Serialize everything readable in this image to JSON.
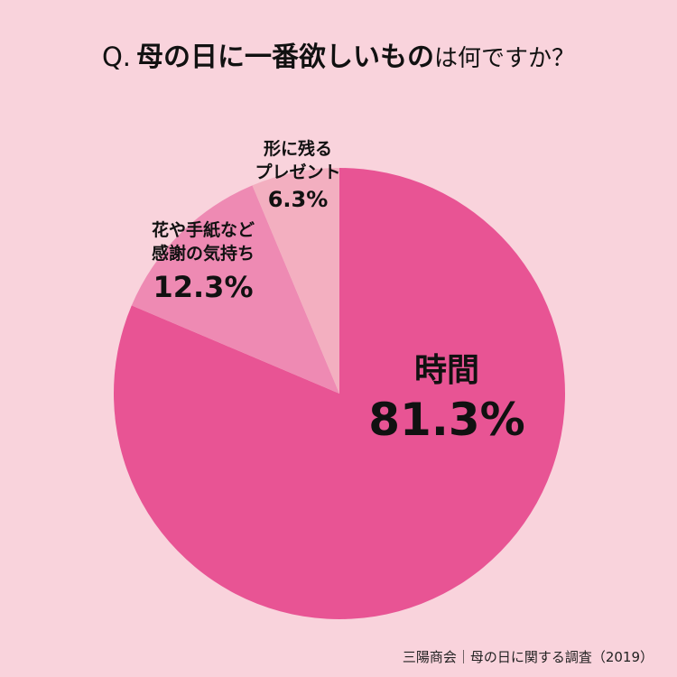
{
  "title": {
    "q": "Q.",
    "bold": "母の日に一番欲しいもの",
    "rest": "は何ですか？"
  },
  "chart_data": {
    "type": "pie",
    "start": "12 o'clock",
    "direction": "clockwise",
    "slices": [
      {
        "label_lines": [
          "時間"
        ],
        "value": 81.3,
        "value_label": "81.3%",
        "color": "#e85494"
      },
      {
        "label_lines": [
          "花や手紙など",
          "感謝の気持ち"
        ],
        "value": 12.3,
        "value_label": "12.3%",
        "color": "#ee8ab3"
      },
      {
        "label_lines": [
          "形に残る",
          "プレゼント"
        ],
        "value": 6.3,
        "value_label": "6.3%",
        "color": "#f3afc0"
      }
    ]
  },
  "source": "三陽商会｜母の日に関する調査（2019）"
}
